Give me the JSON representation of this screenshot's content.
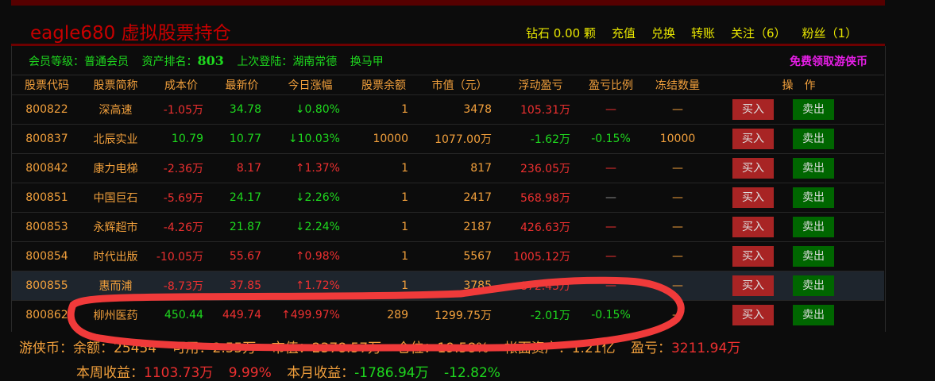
{
  "header": {
    "title": "eagle680 虚拟股票持仓",
    "links": [
      "钻石 0.00 颗",
      "充值",
      "兑换",
      "转账",
      "关注（6）",
      "粉丝（1）"
    ]
  },
  "info": {
    "level_label": "会员等级：",
    "level": "普通会员",
    "rank_label": "资产排名：",
    "rank": "803",
    "login_label": "上次登陆：",
    "login": "湖南常德",
    "change_horse": "换马甲",
    "free_coin": "免费领取游侠币"
  },
  "table": {
    "columns": [
      "股票代码",
      "股票简称",
      "成本价",
      "最新价",
      "今日涨幅",
      "股票余额",
      "市值（元）",
      "浮动盈亏",
      "盈亏比例",
      "冻结数量",
      "操　作"
    ],
    "buy_label": "买入",
    "sell_label": "卖出",
    "rows": [
      {
        "code": "800822",
        "name": "深高速",
        "cost": "-1.05万",
        "cost_color": "red",
        "price": "34.78",
        "price_color": "green",
        "change": "↓0.80%",
        "change_color": "green",
        "qty": "1",
        "value": "3478",
        "pnl": "105.31万",
        "pnl_color": "red",
        "ratio": "—",
        "ratio_color": "red",
        "frozen": "—"
      },
      {
        "code": "800837",
        "name": "北辰实业",
        "cost": "10.79",
        "cost_color": "green",
        "price": "10.77",
        "price_color": "green",
        "change": "↓10.03%",
        "change_color": "green",
        "qty": "10000",
        "value": "1077.00万",
        "pnl": "-1.62万",
        "pnl_color": "green",
        "ratio": "-0.15%",
        "ratio_color": "green",
        "frozen": "10000"
      },
      {
        "code": "800842",
        "name": "康力电梯",
        "cost": "-2.36万",
        "cost_color": "red",
        "price": "8.17",
        "price_color": "red",
        "change": "↑1.37%",
        "change_color": "red",
        "qty": "1",
        "value": "817",
        "pnl": "236.05万",
        "pnl_color": "red",
        "ratio": "—",
        "ratio_color": "red",
        "frozen": "—"
      },
      {
        "code": "800851",
        "name": "中国巨石",
        "cost": "-5.69万",
        "cost_color": "red",
        "price": "24.17",
        "price_color": "green",
        "change": "↓2.26%",
        "change_color": "green",
        "qty": "1",
        "value": "2417",
        "pnl": "568.98万",
        "pnl_color": "red",
        "ratio": "—",
        "ratio_color": "grey",
        "frozen": "—"
      },
      {
        "code": "800853",
        "name": "永辉超市",
        "cost": "-4.26万",
        "cost_color": "red",
        "price": "21.87",
        "price_color": "green",
        "change": "↓2.24%",
        "change_color": "green",
        "qty": "1",
        "value": "2187",
        "pnl": "426.63万",
        "pnl_color": "red",
        "ratio": "—",
        "ratio_color": "red",
        "frozen": "—"
      },
      {
        "code": "800854",
        "name": "时代出版",
        "cost": "-10.05万",
        "cost_color": "red",
        "price": "55.67",
        "price_color": "red",
        "change": "↑0.98%",
        "change_color": "red",
        "qty": "1",
        "value": "5567",
        "pnl": "1005.12万",
        "pnl_color": "red",
        "ratio": "—",
        "ratio_color": "red",
        "frozen": "—"
      },
      {
        "code": "800855",
        "name": "惠而浦",
        "cost": "-8.73万",
        "cost_color": "red",
        "price": "37.85",
        "price_color": "red",
        "change": "↑1.72%",
        "change_color": "red",
        "qty": "1",
        "value": "3785",
        "pnl": "872.45万",
        "pnl_color": "red",
        "ratio": "—",
        "ratio_color": "red",
        "frozen": "—"
      },
      {
        "code": "800862",
        "name": "柳州医药",
        "cost": "450.44",
        "cost_color": "green",
        "price": "449.74",
        "price_color": "red",
        "change": "↑499.97%",
        "change_color": "red",
        "qty": "289",
        "value": "1299.75万",
        "pnl": "-2.01万",
        "pnl_color": "green",
        "ratio": "-0.15%",
        "ratio_color": "green",
        "frozen": "—"
      }
    ]
  },
  "summary": {
    "coin_label": "游侠币：余额：",
    "balance": "25454",
    "avail_label": "可用：",
    "avail": "2.55万",
    "mv_label": "市值：",
    "mv": "2378.57万",
    "pos_label": "仓位：",
    "pos": "19.58%",
    "assets_label": "帐面资产：",
    "assets": "1.21亿",
    "pnl_label": "盈亏：",
    "pnl": "3211.94万",
    "week_label": "本周收益：",
    "week": "1103.73万",
    "week_pct": "9.99%",
    "month_label": "本月收益：",
    "month": "-1786.94万",
    "month_pct": "-12.82%"
  },
  "colors": {
    "red": "#ee3030",
    "green": "#1ed81e",
    "orange": "#f2a03c",
    "annotation": "#f03a3a"
  }
}
